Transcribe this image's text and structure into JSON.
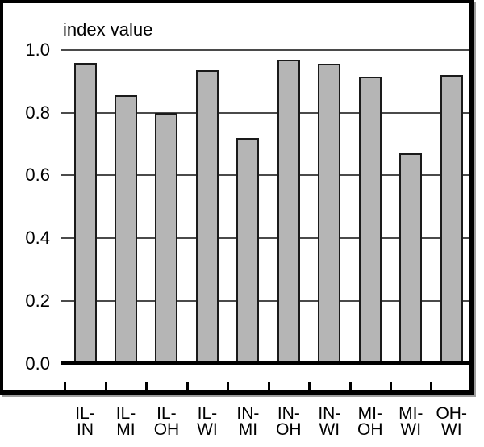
{
  "chart_data": {
    "type": "bar",
    "title": "index value",
    "categories": [
      "IL-IN",
      "IL-MI",
      "IL-OH",
      "IL-WI",
      "IN-MI",
      "IN-OH",
      "IN-WI",
      "MI-OH",
      "MI-WI",
      "OH-WI"
    ],
    "category_labels_two_line": [
      [
        "IL-",
        "IN"
      ],
      [
        "IL-",
        "MI"
      ],
      [
        "IL-",
        "OH"
      ],
      [
        "IL-",
        "WI"
      ],
      [
        "IN-",
        "MI"
      ],
      [
        "IN-",
        "OH"
      ],
      [
        "IN-",
        "WI"
      ],
      [
        "MI-",
        "OH"
      ],
      [
        "MI-",
        "WI"
      ],
      [
        "OH-",
        "WI"
      ]
    ],
    "values": [
      0.96,
      0.855,
      0.8,
      0.935,
      0.72,
      0.97,
      0.955,
      0.915,
      0.67,
      0.92
    ],
    "xlabel": "",
    "ylabel": "index value",
    "ylim": [
      0.0,
      1.0
    ],
    "ytick_labels": [
      "1.0",
      "0.8",
      "0.6",
      "0.4",
      "0.2",
      "0.0"
    ],
    "ytick_values": [
      1.0,
      0.8,
      0.6,
      0.4,
      0.2,
      0.0
    ],
    "grid": "horizontal-gridlines-behind-bars",
    "legend": "none",
    "colors": {
      "bar_fill": "#b5b5b5",
      "bar_border": "#1a1a1a",
      "gridline": "#4a4a4a",
      "axis_and_frame": "#000000",
      "background": "#ffffff"
    }
  }
}
